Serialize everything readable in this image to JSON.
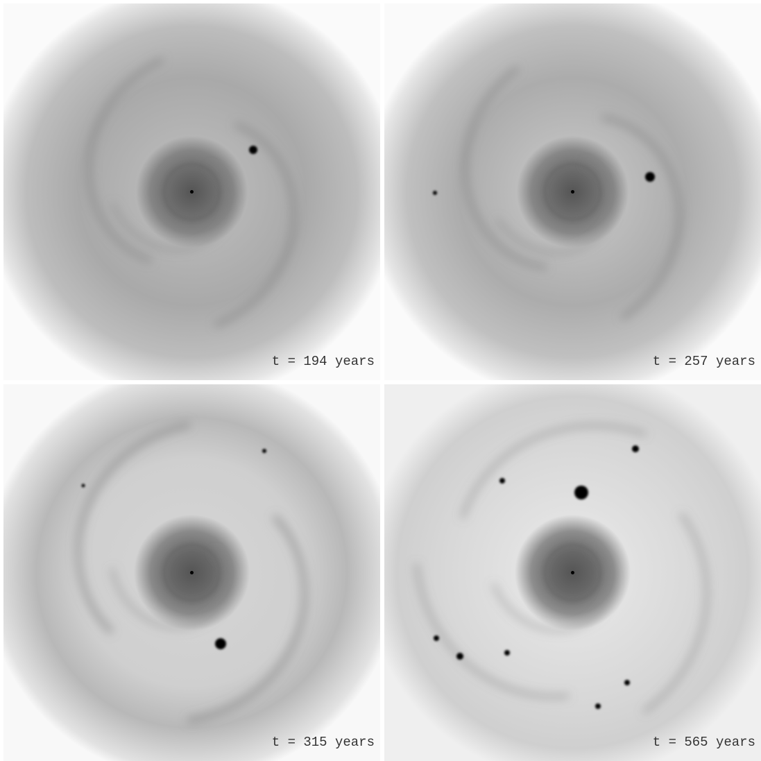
{
  "panels": [
    {
      "label": "t = 194 years"
    },
    {
      "label": "t = 257 years"
    },
    {
      "label": "t = 315 years"
    },
    {
      "label": "t = 565 years"
    }
  ]
}
